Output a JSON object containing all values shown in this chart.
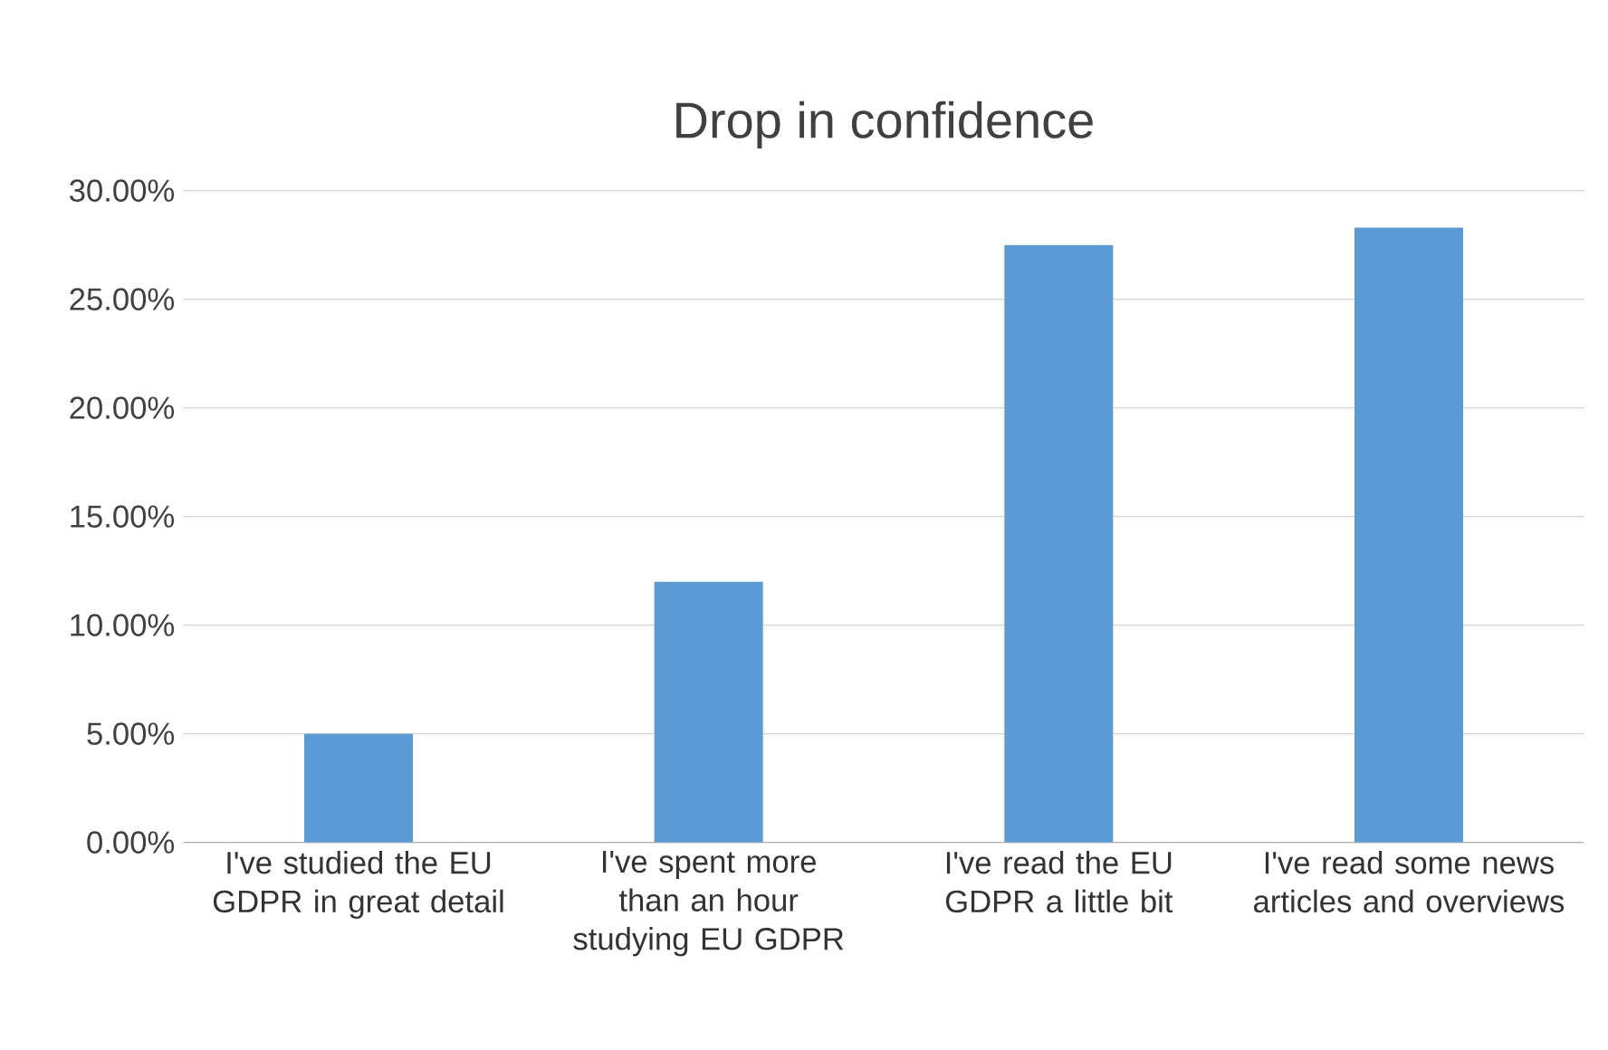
{
  "chart_data": {
    "type": "bar",
    "title": "Drop in confidence",
    "categories": [
      "I've studied the EU GDPR in great detail",
      "I've spent more than an hour studying EU GDPR",
      "I've read the EU GDPR a little bit",
      "I've read some news articles and overviews"
    ],
    "values": [
      5.0,
      12.0,
      27.5,
      28.3
    ],
    "color": "#5b9bd5",
    "ylim": [
      0,
      30
    ],
    "yticks": [
      {
        "value": 0,
        "label": "0.00%"
      },
      {
        "value": 5,
        "label": "5.00%"
      },
      {
        "value": 10,
        "label": "10.00%"
      },
      {
        "value": 15,
        "label": "15.00%"
      },
      {
        "value": 20,
        "label": "20.00%"
      },
      {
        "value": 25,
        "label": "25.00%"
      },
      {
        "value": 30,
        "label": "30.00%"
      }
    ],
    "grid": "y"
  }
}
